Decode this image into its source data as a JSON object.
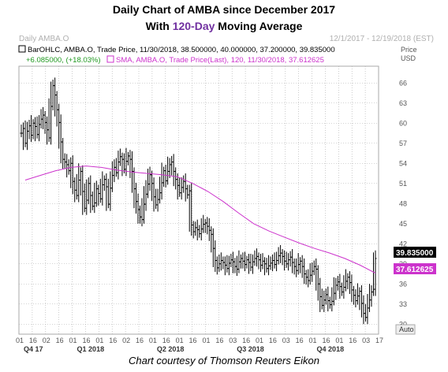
{
  "title_line1": "Daily Chart of AMBA since December 2017",
  "title_line2_prefix": "With ",
  "title_line2_highlight": "120-Day",
  "title_line2_suffix": " Moving Average",
  "header_left": "Daily AMBA.O",
  "header_right": "12/1/2017 - 12/19/2018 (EST)",
  "caption": "Chart courtesy of Thomson Reuters Eikon",
  "legend": {
    "line1": "BarOHLC, AMBA.O, Trade Price, 11/30/2018, 38.500000, 40.000000, 37.200000, 39.835000",
    "line2_change": "+6.085000, (+18.03%)",
    "line2_sma": "SMA, AMBA.O, Trade Price(Last), 120, 11/30/2018, 37.612625"
  },
  "axis_title_price": "Price",
  "axis_title_currency": "USD",
  "auto_label": "Auto",
  "colors": {
    "bars": "#000000",
    "sma": "#cc33cc",
    "grid": "#aaaaaa",
    "price_box": "#000000",
    "sma_box": "#cc33cc"
  },
  "chart_data": {
    "type": "line",
    "y_ticks": [
      30,
      33,
      36,
      39,
      42,
      45,
      48,
      51,
      54,
      57,
      60,
      63,
      66
    ],
    "ylim": [
      28.5,
      68.5
    ],
    "x_tick_labels": [
      "01",
      "16",
      "02",
      "16",
      "01",
      "16",
      "01",
      "16",
      "02",
      "16",
      "01",
      "16",
      "01",
      "16",
      "01",
      "16",
      "03",
      "16",
      "01",
      "16",
      "03",
      "16",
      "01",
      "16",
      "01",
      "16",
      "03",
      "17"
    ],
    "quarter_labels": [
      "Q4 17",
      "Q1 2018",
      "Q2 2018",
      "Q3 2018",
      "Q4 2018"
    ],
    "last_price_label": "39.835000",
    "last_sma_label": "37.612625",
    "ohlc_closes": [
      58.5,
      59.2,
      57.0,
      58.8,
      59.6,
      58.2,
      60.0,
      59.5,
      58.3,
      59.8,
      60.6,
      61.2,
      60.1,
      59.0,
      57.8,
      62.5,
      65.6,
      64.2,
      62.0,
      60.1,
      57.2,
      54.6,
      54.2,
      53.8,
      52.9,
      54.0,
      51.3,
      50.0,
      49.2,
      51.5,
      52.8,
      49.8,
      47.3,
      48.5,
      51.0,
      49.2,
      47.6,
      48.1,
      50.2,
      49.5,
      48.7,
      50.8,
      51.6,
      50.5,
      47.9,
      50.3,
      52.2,
      53.4,
      52.6,
      54.2,
      55.0,
      54.6,
      53.1,
      54.3,
      55.1,
      54.6,
      52.8,
      50.2,
      48.3,
      47.1,
      46.0,
      45.6,
      47.9,
      49.4,
      50.9,
      52.3,
      51.0,
      49.0,
      47.8,
      48.6,
      49.6,
      51.1,
      52.9,
      51.4,
      52.8,
      53.8,
      54.2,
      52.8,
      51.6,
      50.7,
      49.6,
      50.4,
      51.3,
      50.2,
      49.3,
      49.9,
      44.8,
      43.8,
      44.4,
      44.1,
      43.5,
      44.2,
      44.9,
      45.1,
      44.6,
      44.0,
      43.4,
      41.3,
      39.5,
      38.4,
      39.0,
      39.5,
      39.2,
      38.8,
      38.3,
      39.1,
      39.6,
      39.3,
      38.6,
      38.2,
      39.3,
      39.8,
      39.4,
      38.9,
      39.6,
      39.2,
      38.5,
      39.3,
      39.8,
      40.1,
      39.6,
      38.8,
      39.4,
      39.0,
      38.3,
      38.7,
      39.1,
      39.5,
      38.9,
      39.5,
      40.2,
      40.6,
      40.1,
      39.4,
      39.0,
      39.6,
      40.0,
      39.2,
      38.6,
      38.0,
      38.9,
      39.4,
      38.6,
      37.5,
      37.0,
      36.5,
      37.3,
      37.9,
      38.6,
      38.2,
      36.0,
      34.1,
      32.8,
      33.6,
      34.4,
      33.5,
      32.9,
      33.4,
      34.6,
      35.8,
      36.3,
      35.6,
      34.8,
      35.5,
      36.4,
      37.0,
      36.2,
      35.1,
      34.3,
      33.5,
      34.2,
      34.9,
      33.1,
      31.6,
      31.0,
      32.4,
      33.6,
      34.8,
      35.2,
      39.8
    ],
    "sma_values": [
      51.5,
      52.2,
      52.9,
      53.4,
      53.6,
      53.4,
      53.0,
      52.7,
      52.5,
      52.3,
      52.0,
      51.0,
      49.8,
      48.3,
      46.6,
      45.0,
      43.9,
      43.0,
      42.1,
      41.3,
      40.6,
      39.8,
      38.8,
      37.6
    ],
    "sma_start_index": 2
  }
}
